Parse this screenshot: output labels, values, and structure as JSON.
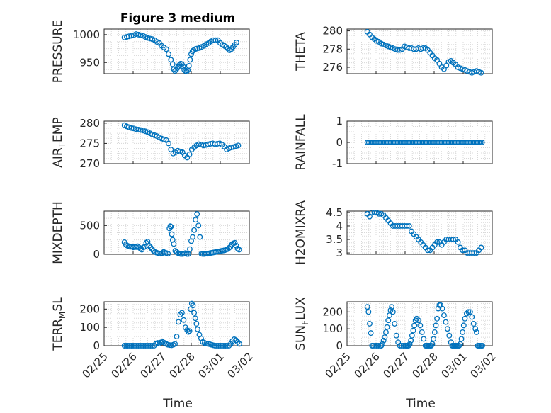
{
  "figure": {
    "title": "Figure 3 medium",
    "marker_color": "#0072BD",
    "xlabel": "Time",
    "x_tick_labels": [
      "02/25",
      "02/26",
      "02/27",
      "02/28",
      "03/01",
      "03/02"
    ]
  },
  "chart_data": [
    {
      "type": "scatter",
      "id": "pressure",
      "ylabel": "PRESSURE",
      "ylabel_sub": "",
      "ylim": [
        930,
        1010
      ],
      "yticks": [
        950,
        1000
      ],
      "ytick_labels": [
        "950",
        "1000"
      ],
      "xlim": [
        0,
        5
      ],
      "grid": true,
      "x": [
        0.7,
        0.78,
        0.86,
        0.94,
        1.02,
        1.1,
        1.18,
        1.26,
        1.34,
        1.42,
        1.5,
        1.58,
        1.66,
        1.74,
        1.82,
        1.9,
        1.98,
        2.06,
        2.14,
        2.22,
        2.3,
        2.36,
        2.4,
        2.44,
        2.48,
        2.52,
        2.56,
        2.6,
        2.64,
        2.68,
        2.72,
        2.76,
        2.8,
        2.84,
        2.88,
        2.92,
        2.96,
        3.0,
        3.04,
        3.08,
        3.14,
        3.2,
        3.28,
        3.36,
        3.44,
        3.52,
        3.6,
        3.68,
        3.76,
        3.84,
        3.92,
        4.0,
        4.08,
        4.14,
        4.2,
        4.26,
        4.32,
        4.38,
        4.44,
        4.5,
        4.56
      ],
      "y": [
        995,
        996,
        997,
        998,
        999,
        1001,
        1000,
        999,
        998,
        996,
        994,
        993,
        992,
        990,
        987,
        985,
        980,
        977,
        974,
        965,
        955,
        947,
        938,
        935,
        937,
        940,
        943,
        946,
        948,
        947,
        943,
        937,
        935,
        934,
        936,
        944,
        955,
        965,
        970,
        972,
        974,
        975,
        976,
        978,
        980,
        983,
        985,
        988,
        990,
        990,
        990,
        985,
        982,
        980,
        978,
        975,
        972,
        974,
        978,
        982,
        986
      ]
    },
    {
      "type": "scatter",
      "id": "theta",
      "ylabel": "THETA",
      "ylabel_sub": "",
      "ylim": [
        275.3,
        280.2
      ],
      "yticks": [
        276,
        278,
        280
      ],
      "ytick_labels": [
        "276",
        "278",
        "280"
      ],
      "xlim": [
        0,
        5
      ],
      "grid": true,
      "x": [
        0.7,
        0.78,
        0.86,
        0.94,
        1.02,
        1.1,
        1.18,
        1.26,
        1.34,
        1.42,
        1.5,
        1.58,
        1.66,
        1.74,
        1.82,
        1.9,
        1.98,
        2.06,
        2.14,
        2.22,
        2.3,
        2.38,
        2.46,
        2.54,
        2.62,
        2.7,
        2.78,
        2.86,
        2.94,
        3.02,
        3.1,
        3.18,
        3.26,
        3.34,
        3.42,
        3.5,
        3.58,
        3.66,
        3.74,
        3.82,
        3.9,
        3.98,
        4.06,
        4.14,
        4.22,
        4.3,
        4.38,
        4.46,
        4.54,
        4.62
      ],
      "y": [
        279.9,
        279.6,
        279.3,
        279.1,
        278.9,
        278.8,
        278.6,
        278.5,
        278.4,
        278.3,
        278.2,
        278.1,
        278.0,
        277.9,
        277.9,
        278.0,
        278.3,
        278.2,
        278.1,
        278.1,
        278.0,
        278.0,
        278.1,
        278.0,
        278.1,
        278.1,
        277.9,
        277.6,
        277.3,
        277.0,
        276.8,
        276.4,
        276.0,
        275.8,
        276.2,
        276.6,
        276.7,
        276.5,
        276.3,
        276.0,
        275.9,
        275.8,
        275.7,
        275.6,
        275.5,
        275.4,
        275.5,
        275.6,
        275.5,
        275.4
      ]
    },
    {
      "type": "scatter",
      "id": "air_temp",
      "ylabel": "AIR",
      "ylabel_sub": "T",
      "ylabel_suffix": "EMP",
      "ylim": [
        270,
        280.5
      ],
      "yticks": [
        270,
        275,
        280
      ],
      "ytick_labels": [
        "270",
        "275",
        "280"
      ],
      "xlim": [
        0,
        5
      ],
      "grid": true,
      "x": [
        0.7,
        0.78,
        0.86,
        0.94,
        1.02,
        1.1,
        1.18,
        1.26,
        1.34,
        1.42,
        1.5,
        1.58,
        1.66,
        1.74,
        1.82,
        1.9,
        1.98,
        2.06,
        2.14,
        2.22,
        2.3,
        2.38,
        2.46,
        2.54,
        2.62,
        2.7,
        2.78,
        2.86,
        2.94,
        3.02,
        3.1,
        3.18,
        3.26,
        3.34,
        3.42,
        3.5,
        3.58,
        3.66,
        3.74,
        3.82,
        3.9,
        3.98,
        4.06,
        4.14,
        4.22,
        4.3,
        4.38,
        4.46,
        4.54,
        4.62
      ],
      "y": [
        279.5,
        279.2,
        279.0,
        278.8,
        278.7,
        278.5,
        278.4,
        278.3,
        278.2,
        278.0,
        277.8,
        277.5,
        277.2,
        277.0,
        276.8,
        276.5,
        276.2,
        276.0,
        275.8,
        275.0,
        273.5,
        272.5,
        272.8,
        273.2,
        273.0,
        272.8,
        272.0,
        271.5,
        272.3,
        273.5,
        274.0,
        274.5,
        274.8,
        274.7,
        274.5,
        274.6,
        274.8,
        274.9,
        275.0,
        274.8,
        274.9,
        275.0,
        274.7,
        274.2,
        273.5,
        273.8,
        274.0,
        274.1,
        274.3,
        274.5
      ]
    },
    {
      "type": "scatter",
      "id": "rainfall",
      "ylabel": "RAINFALL",
      "ylabel_sub": "",
      "ylim": [
        -1,
        1
      ],
      "yticks": [
        -1,
        0,
        1
      ],
      "ytick_labels": [
        "-1",
        "0",
        "1"
      ],
      "xlim": [
        0,
        5
      ],
      "grid": true,
      "x_start": 0.7,
      "x_end": 4.65,
      "count": 80,
      "y_constant": 0
    },
    {
      "type": "scatter",
      "id": "mixdepth",
      "ylabel": "MIXDEPTH",
      "ylabel_sub": "",
      "ylim": [
        0,
        750
      ],
      "yticks": [
        0,
        500
      ],
      "ytick_labels": [
        "0",
        "500"
      ],
      "xlim": [
        0,
        5
      ],
      "grid": true,
      "x": [
        0.7,
        0.75,
        0.8,
        0.85,
        0.9,
        0.95,
        1.0,
        1.05,
        1.1,
        1.15,
        1.2,
        1.25,
        1.3,
        1.35,
        1.4,
        1.45,
        1.5,
        1.55,
        1.6,
        1.65,
        1.7,
        1.75,
        1.8,
        1.85,
        1.9,
        1.95,
        2.0,
        2.05,
        2.1,
        2.15,
        2.2,
        2.25,
        2.28,
        2.3,
        2.33,
        2.36,
        2.4,
        2.45,
        2.5,
        2.55,
        2.6,
        2.65,
        2.7,
        2.75,
        2.8,
        2.85,
        2.9,
        2.95,
        3.0,
        3.05,
        3.1,
        3.15,
        3.2,
        3.25,
        3.3,
        3.35,
        3.4,
        3.45,
        3.5,
        3.55,
        3.6,
        3.65,
        3.7,
        3.75,
        3.8,
        3.85,
        3.9,
        3.95,
        4.0,
        4.05,
        4.1,
        4.15,
        4.2,
        4.25,
        4.3,
        4.35,
        4.4,
        4.45,
        4.5,
        4.55,
        4.6,
        4.65
      ],
      "y": [
        210,
        170,
        150,
        140,
        130,
        135,
        120,
        130,
        125,
        140,
        120,
        100,
        80,
        120,
        130,
        200,
        220,
        150,
        120,
        90,
        60,
        40,
        30,
        20,
        15,
        10,
        20,
        40,
        30,
        20,
        10,
        450,
        490,
        480,
        350,
        250,
        180,
        60,
        40,
        20,
        10,
        5,
        5,
        10,
        20,
        5,
        5,
        90,
        230,
        300,
        420,
        600,
        700,
        500,
        300,
        10,
        5,
        5,
        10,
        10,
        15,
        20,
        25,
        30,
        35,
        40,
        45,
        50,
        55,
        60,
        65,
        70,
        80,
        90,
        110,
        130,
        170,
        190,
        200,
        150,
        100,
        80
      ]
    },
    {
      "type": "scatter",
      "id": "h2omixra",
      "ylabel": "H2OMIXRA",
      "ylabel_sub": "",
      "ylim": [
        2.95,
        4.55
      ],
      "yticks": [
        3,
        3.5,
        4,
        4.5
      ],
      "ytick_labels": [
        "3",
        "3.5",
        "4",
        "4.5"
      ],
      "xlim": [
        0,
        5
      ],
      "grid": true,
      "x": [
        0.7,
        0.78,
        0.86,
        0.94,
        1.02,
        1.1,
        1.18,
        1.26,
        1.34,
        1.42,
        1.5,
        1.58,
        1.66,
        1.74,
        1.82,
        1.9,
        1.98,
        2.06,
        2.14,
        2.22,
        2.3,
        2.38,
        2.46,
        2.54,
        2.62,
        2.7,
        2.78,
        2.86,
        2.94,
        3.02,
        3.1,
        3.18,
        3.26,
        3.34,
        3.42,
        3.5,
        3.58,
        3.66,
        3.74,
        3.82,
        3.9,
        3.98,
        4.06,
        4.14,
        4.22,
        4.3,
        4.38,
        4.46,
        4.54,
        4.62
      ],
      "y": [
        4.45,
        4.35,
        4.5,
        4.5,
        4.5,
        4.45,
        4.45,
        4.4,
        4.3,
        4.2,
        4.1,
        4.0,
        4.0,
        4.0,
        4.0,
        4.0,
        4.0,
        4.0,
        4.0,
        3.8,
        3.7,
        3.6,
        3.5,
        3.4,
        3.3,
        3.2,
        3.1,
        3.1,
        3.2,
        3.3,
        3.4,
        3.4,
        3.3,
        3.4,
        3.5,
        3.5,
        3.5,
        3.5,
        3.5,
        3.4,
        3.2,
        3.1,
        3.1,
        3.0,
        3.0,
        3.0,
        3.0,
        3.0,
        3.1,
        3.2
      ]
    },
    {
      "type": "scatter",
      "id": "terrain",
      "ylabel": "TERR",
      "ylabel_sub": "M",
      "ylabel_suffix": "SL",
      "ylim": [
        0,
        240
      ],
      "yticks": [
        0,
        100,
        200
      ],
      "ytick_labels": [
        "0",
        "100",
        "200"
      ],
      "xlim": [
        0,
        5
      ],
      "grid": true,
      "x": [
        0.7,
        0.76,
        0.82,
        0.88,
        0.94,
        1.0,
        1.06,
        1.12,
        1.18,
        1.24,
        1.3,
        1.36,
        1.42,
        1.48,
        1.54,
        1.6,
        1.66,
        1.72,
        1.78,
        1.84,
        1.9,
        1.96,
        2.02,
        2.08,
        2.14,
        2.2,
        2.26,
        2.32,
        2.38,
        2.44,
        2.5,
        2.56,
        2.62,
        2.68,
        2.74,
        2.8,
        2.86,
        2.9,
        2.94,
        2.98,
        3.02,
        3.06,
        3.1,
        3.14,
        3.18,
        3.22,
        3.28,
        3.34,
        3.4,
        3.46,
        3.52,
        3.58,
        3.64,
        3.7,
        3.76,
        3.82,
        3.88,
        3.94,
        4.0,
        4.06,
        4.12,
        4.18,
        4.24,
        4.3,
        4.36,
        4.42,
        4.48,
        4.54,
        4.6,
        4.66
      ],
      "y": [
        0,
        0,
        0,
        0,
        0,
        0,
        0,
        0,
        0,
        0,
        0,
        0,
        0,
        0,
        0,
        0,
        0,
        0,
        10,
        15,
        12,
        18,
        20,
        15,
        10,
        5,
        3,
        2,
        5,
        10,
        50,
        130,
        170,
        180,
        140,
        100,
        85,
        75,
        80,
        200,
        230,
        220,
        180,
        150,
        120,
        90,
        60,
        40,
        20,
        15,
        12,
        10,
        8,
        5,
        2,
        0,
        0,
        0,
        0,
        0,
        0,
        0,
        0,
        0,
        10,
        25,
        35,
        30,
        20,
        10
      ]
    },
    {
      "type": "scatter",
      "id": "sunflux",
      "ylabel": "SUN",
      "ylabel_sub": "F",
      "ylabel_suffix": "LUX",
      "ylim": [
        0,
        260
      ],
      "yticks": [
        0,
        100,
        200
      ],
      "ytick_labels": [
        "0",
        "100",
        "200"
      ],
      "xlim": [
        0,
        5
      ],
      "grid": true,
      "x": [
        0.7,
        0.74,
        0.78,
        0.82,
        0.86,
        0.9,
        0.96,
        1.02,
        1.08,
        1.14,
        1.18,
        1.22,
        1.26,
        1.3,
        1.34,
        1.38,
        1.42,
        1.46,
        1.5,
        1.54,
        1.58,
        1.64,
        1.7,
        1.76,
        1.82,
        1.88,
        1.94,
        2.0,
        2.04,
        2.08,
        2.12,
        2.16,
        2.2,
        2.24,
        2.28,
        2.32,
        2.36,
        2.4,
        2.46,
        2.52,
        2.58,
        2.64,
        2.7,
        2.74,
        2.78,
        2.82,
        2.86,
        2.9,
        2.94,
        2.98,
        3.02,
        3.06,
        3.1,
        3.14,
        3.18,
        3.22,
        3.28,
        3.34,
        3.4,
        3.46,
        3.52,
        3.58,
        3.62,
        3.66,
        3.7,
        3.74,
        3.78,
        3.82,
        3.86,
        3.9,
        3.94,
        3.98,
        4.02,
        4.06,
        4.12,
        4.18,
        4.24,
        4.3,
        4.36,
        4.42,
        4.46,
        4.5,
        4.54,
        4.58,
        4.62,
        4.66
      ],
      "y": [
        230,
        200,
        130,
        75,
        0,
        0,
        0,
        0,
        0,
        0,
        0,
        10,
        30,
        50,
        80,
        110,
        150,
        180,
        210,
        230,
        200,
        130,
        60,
        20,
        0,
        0,
        0,
        0,
        0,
        0,
        0,
        10,
        30,
        60,
        90,
        120,
        150,
        160,
        150,
        120,
        80,
        40,
        0,
        0,
        0,
        0,
        0,
        0,
        10,
        40,
        80,
        120,
        160,
        220,
        240,
        240,
        220,
        180,
        140,
        100,
        60,
        20,
        0,
        0,
        0,
        0,
        0,
        0,
        0,
        10,
        40,
        80,
        120,
        160,
        190,
        200,
        200,
        170,
        130,
        100,
        80,
        0,
        0,
        0,
        0,
        0
      ]
    }
  ]
}
